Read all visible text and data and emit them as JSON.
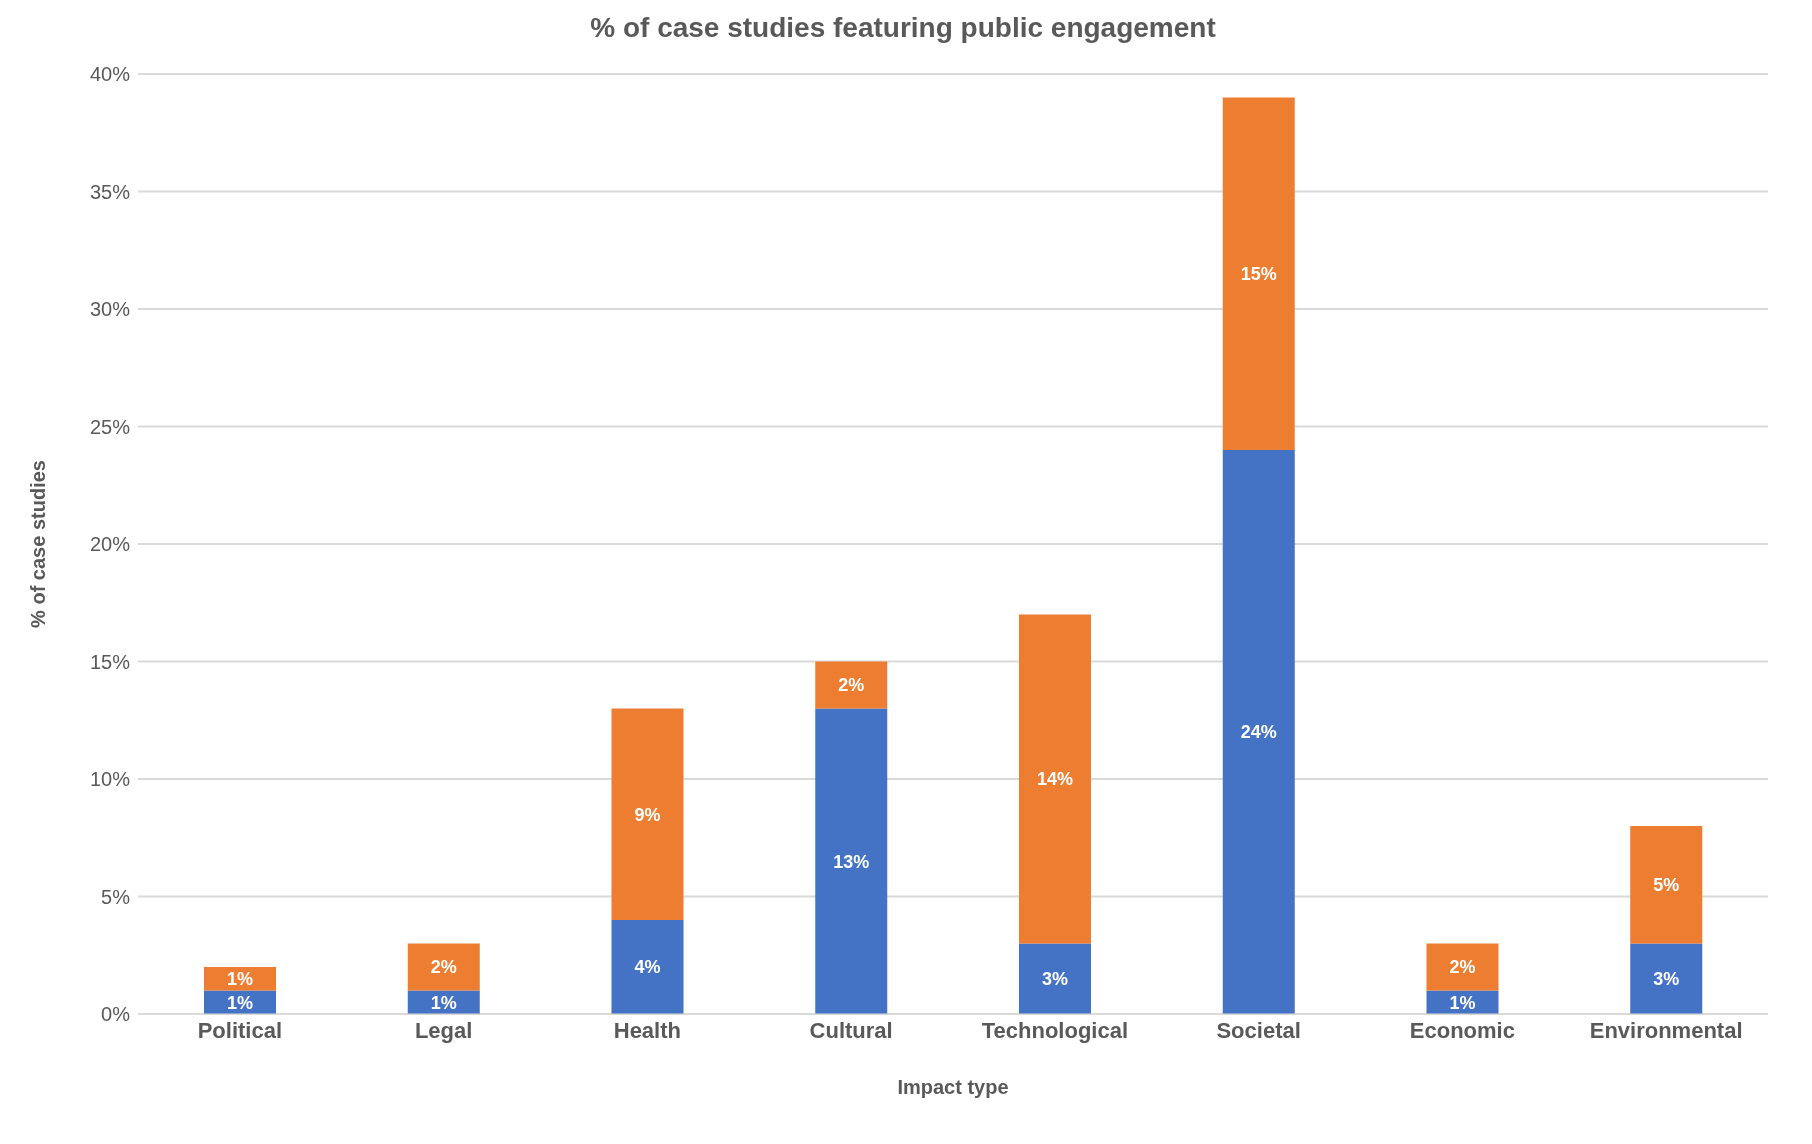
{
  "chart_data": {
    "type": "bar",
    "title": "% of case studies featuring public engagement",
    "xlabel": "Impact type",
    "ylabel": "% of case studies",
    "categories": [
      "Political",
      "Legal",
      "Health",
      "Cultural",
      "Technological",
      "Societal",
      "Economic",
      "Environmental"
    ],
    "stacked": true,
    "series": [
      {
        "color": "#4472c4",
        "values": [
          1,
          1,
          4,
          13,
          3,
          24,
          1,
          3
        ],
        "value_labels": [
          "1%",
          "1%",
          "4%",
          "13%",
          "3%",
          "24%",
          "1%",
          "3%"
        ]
      },
      {
        "color": "#ed7d31",
        "values": [
          1,
          2,
          9,
          2,
          14,
          15,
          2,
          5
        ],
        "value_labels": [
          "1%",
          "2%",
          "9%",
          "2%",
          "14%",
          "15%",
          "2%",
          "5%"
        ]
      }
    ],
    "ylim": [
      0,
      40
    ],
    "yticks": [
      {
        "value": 0,
        "label": "0%"
      },
      {
        "value": 5,
        "label": "5%"
      },
      {
        "value": 10,
        "label": "10%"
      },
      {
        "value": 15,
        "label": "15%"
      },
      {
        "value": 20,
        "label": "20%"
      },
      {
        "value": 25,
        "label": "25%"
      },
      {
        "value": 30,
        "label": "30%"
      },
      {
        "value": 35,
        "label": "35%"
      },
      {
        "value": 40,
        "label": "40%"
      }
    ],
    "grid": "y",
    "legend": false
  }
}
